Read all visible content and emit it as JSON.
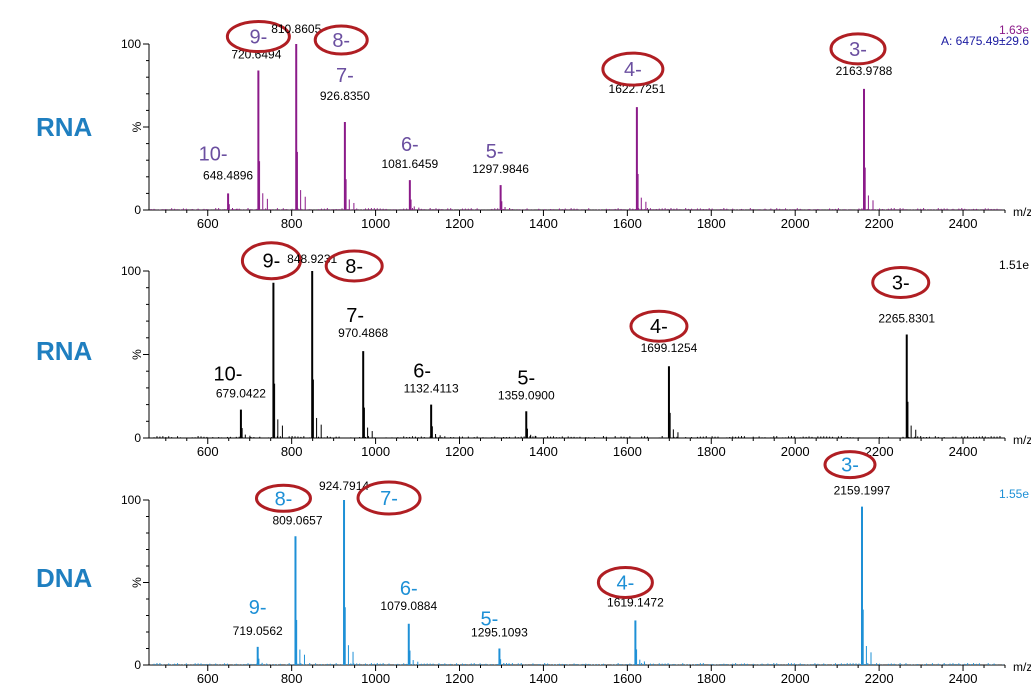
{
  "figure": {
    "panels": [
      {
        "side_label": "RNA",
        "color": "#8b1a89",
        "charge_color": "#6b4fa0",
        "top_right_text": [
          "1.63e",
          "A:   6475.49±29.6"
        ],
        "top_right_colors": [
          "#8b1a89",
          "#1a1aa0"
        ]
      },
      {
        "side_label": "RNA",
        "color": "#000000",
        "charge_color": "#000000",
        "top_right_text": [
          "1.51e"
        ],
        "top_right_colors": [
          "#000000"
        ]
      },
      {
        "side_label": "DNA",
        "color": "#1e90d6",
        "charge_color": "#1e90d6",
        "top_right_text": [
          "1.55e"
        ],
        "top_right_colors": [
          "#1e90d6"
        ]
      }
    ],
    "circle_color": "#b01e23",
    "label_color": "#1f7fc0"
  },
  "chart_data": [
    {
      "type": "bar",
      "title": "",
      "xlabel": "m/z",
      "ylabel": "%",
      "xlim": [
        460,
        2500
      ],
      "ylim": [
        0,
        100
      ],
      "x_ticks": [
        600,
        800,
        1000,
        1200,
        1400,
        1600,
        1800,
        2000,
        2200,
        2400
      ],
      "y_ticks": [
        0,
        100
      ],
      "peaks": [
        {
          "mz": 648.4896,
          "intensity": 10,
          "label": "648.4896",
          "charge": "10-",
          "circled": false
        },
        {
          "mz": 720.6494,
          "intensity": 84,
          "label": "720.6494",
          "charge": "9-",
          "circled": true
        },
        {
          "mz": 810.8605,
          "intensity": 100,
          "label": "810.8605",
          "charge": "8-",
          "circled": true
        },
        {
          "mz": 926.835,
          "intensity": 53,
          "label": "926.8350",
          "charge": "7-",
          "circled": false
        },
        {
          "mz": 1081.6459,
          "intensity": 18,
          "label": "1081.6459",
          "charge": "6-",
          "circled": false
        },
        {
          "mz": 1297.9846,
          "intensity": 15,
          "label": "1297.9846",
          "charge": "5-",
          "circled": false
        },
        {
          "mz": 1622.7251,
          "intensity": 62,
          "label": "1622.7251",
          "charge": "4-",
          "circled": true
        },
        {
          "mz": 2163.9788,
          "intensity": 73,
          "label": "2163.9788",
          "charge": "3-",
          "circled": true
        }
      ]
    },
    {
      "type": "bar",
      "title": "",
      "xlabel": "m/z",
      "ylabel": "%",
      "xlim": [
        460,
        2500
      ],
      "ylim": [
        0,
        100
      ],
      "x_ticks": [
        600,
        800,
        1000,
        1200,
        1400,
        1600,
        1800,
        2000,
        2200,
        2400
      ],
      "y_ticks": [
        0,
        100
      ],
      "peaks": [
        {
          "mz": 679.0422,
          "intensity": 17,
          "label": "679.0422",
          "charge": "10-",
          "circled": false
        },
        {
          "mz": 756.5,
          "intensity": 93,
          "label": "",
          "charge": "9-",
          "circled": true
        },
        {
          "mz": 848.9231,
          "intensity": 100,
          "label": "848.9231",
          "charge": "8-",
          "circled": true
        },
        {
          "mz": 970.4868,
          "intensity": 52,
          "label": "970.4868",
          "charge": "7-",
          "circled": false
        },
        {
          "mz": 1132.4113,
          "intensity": 20,
          "label": "1132.4113",
          "charge": "6-",
          "circled": false
        },
        {
          "mz": 1359.09,
          "intensity": 16,
          "label": "1359.0900",
          "charge": "5-",
          "circled": false
        },
        {
          "mz": 1699.1254,
          "intensity": 43,
          "label": "1699.1254",
          "charge": "4-",
          "circled": true
        },
        {
          "mz": 2265.8301,
          "intensity": 62,
          "label": "2265.8301",
          "charge": "3-",
          "circled": true
        }
      ]
    },
    {
      "type": "bar",
      "title": "",
      "xlabel": "m/z",
      "ylabel": "%",
      "xlim": [
        460,
        2500
      ],
      "ylim": [
        0,
        100
      ],
      "x_ticks": [
        600,
        800,
        1000,
        1200,
        1400,
        1600,
        1800,
        2000,
        2200,
        2400
      ],
      "y_ticks": [
        0,
        100
      ],
      "peaks": [
        {
          "mz": 719.0562,
          "intensity": 11,
          "label": "719.0562",
          "charge": "9-",
          "circled": false
        },
        {
          "mz": 809.0657,
          "intensity": 78,
          "label": "809.0657",
          "charge": "8-",
          "circled": true
        },
        {
          "mz": 924.7914,
          "intensity": 100,
          "label": "924.7914",
          "charge": "7-",
          "circled": true
        },
        {
          "mz": 1079.0884,
          "intensity": 25,
          "label": "1079.0884",
          "charge": "6-",
          "circled": false
        },
        {
          "mz": 1295.1093,
          "intensity": 10,
          "label": "1295.1093",
          "charge": "5-",
          "circled": false
        },
        {
          "mz": 1619.1472,
          "intensity": 27,
          "label": "1619.1472",
          "charge": "4-",
          "circled": true
        },
        {
          "mz": 2159.1997,
          "intensity": 96,
          "label": "2159.1997",
          "charge": "3-",
          "circled": true
        }
      ]
    }
  ]
}
